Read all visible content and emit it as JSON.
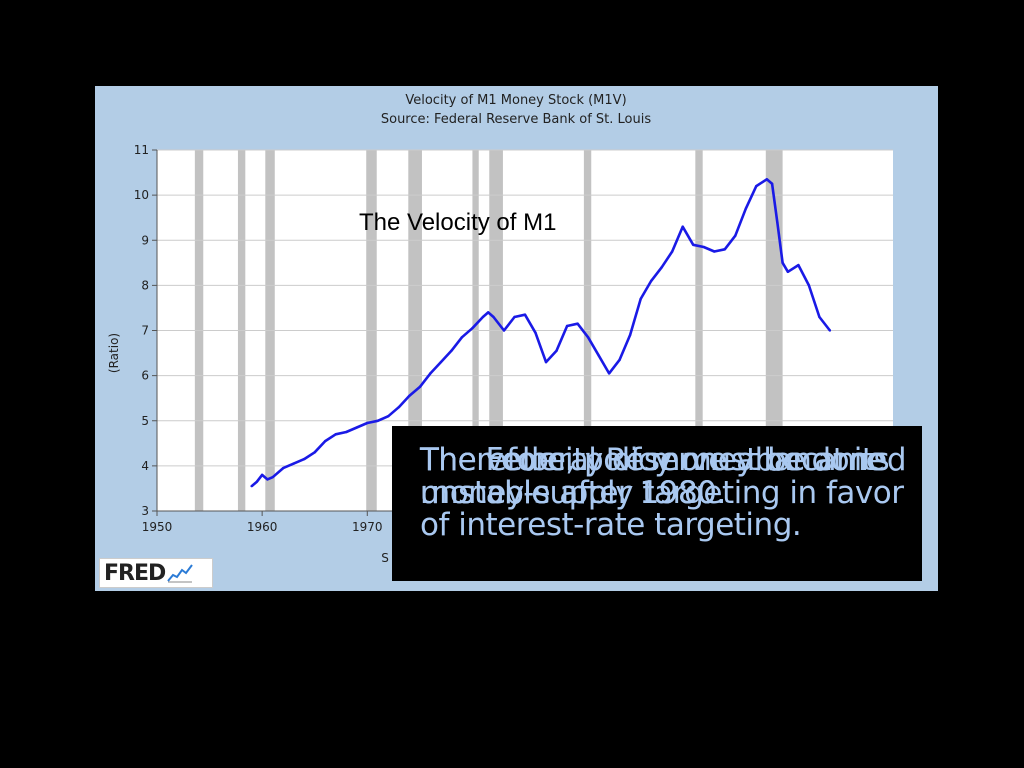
{
  "chart_data": {
    "type": "line",
    "title": "Velocity of M1 Money Stock (M1V)",
    "subtitle": "Source: Federal Reserve Bank of St. Louis",
    "ylabel": "(Ratio)",
    "xlim": [
      1950,
      2020
    ],
    "ylim": [
      3,
      11
    ],
    "x_ticks": [
      1950,
      1960,
      1970
    ],
    "x_tick_labels": [
      "1950",
      "1960",
      "1970"
    ],
    "y_ticks": [
      3,
      4,
      5,
      6,
      7,
      8,
      9,
      10,
      11
    ],
    "y_tick_labels": [
      "3",
      "4",
      "5",
      "6",
      "7",
      "8",
      "9",
      "10",
      "11"
    ],
    "grid": true,
    "series_color": "#1a1ae6",
    "recessions": [
      [
        1953.6,
        1954.4
      ],
      [
        1957.7,
        1958.4
      ],
      [
        1960.3,
        1961.2
      ],
      [
        1969.9,
        1970.9
      ],
      [
        1973.9,
        1975.2
      ],
      [
        1980.0,
        1980.6
      ],
      [
        1981.6,
        1982.9
      ],
      [
        1990.6,
        1991.3
      ],
      [
        2001.2,
        2001.9
      ],
      [
        2007.9,
        2009.5
      ]
    ],
    "series": [
      {
        "x": [
          1959.0,
          1959.5,
          1960.0,
          1960.5,
          1961.0,
          1962.0,
          1963.0,
          1964.0,
          1965.0,
          1966.0,
          1967.0,
          1968.0,
          1969.0,
          1970.0,
          1971.0,
          1972.0,
          1973.0,
          1974.0,
          1975.0,
          1976.0,
          1977.0,
          1978.0,
          1979.0,
          1980.0,
          1981.0,
          1981.5,
          1982.0,
          1983.0,
          1984.0,
          1985.0,
          1986.0,
          1987.0,
          1988.0,
          1989.0,
          1990.0,
          1991.0,
          1992.0,
          1993.0,
          1994.0,
          1995.0,
          1996.0,
          1997.0,
          1998.0,
          1999.0,
          2000.0,
          2001.0,
          2002.0,
          2003.0,
          2004.0,
          2005.0,
          2006.0,
          2007.0,
          2008.0,
          2008.5,
          2009.0,
          2009.5,
          2010.0,
          2011.0,
          2012.0,
          2013.0,
          2014.0
        ],
        "values": [
          3.55,
          3.65,
          3.8,
          3.7,
          3.75,
          3.95,
          4.05,
          4.15,
          4.3,
          4.55,
          4.7,
          4.75,
          4.85,
          4.95,
          5.0,
          5.1,
          5.3,
          5.55,
          5.75,
          6.05,
          6.3,
          6.55,
          6.85,
          7.05,
          7.3,
          7.4,
          7.3,
          7.0,
          7.3,
          7.35,
          6.95,
          6.3,
          6.55,
          7.1,
          7.15,
          6.85,
          6.45,
          6.05,
          6.35,
          6.9,
          7.7,
          8.1,
          8.4,
          8.75,
          9.3,
          8.9,
          8.85,
          8.75,
          8.8,
          9.1,
          9.7,
          10.2,
          10.35,
          10.25,
          9.4,
          8.5,
          8.3,
          8.45,
          8.0,
          7.3,
          7.0
        ]
      }
    ]
  },
  "inner_label": "The Velocity of M1",
  "x_axis_title_partial": "S",
  "overlay_text_1": "The Federal Reserve abandoned money-supply targeting in favor of interest-rate targeting.",
  "overlay_text_2": "The velocity of money became unstable after 1980.",
  "overlay_text_3": "Therefore, policy must be at its unstable after 1980.",
  "logo": {
    "word": "FRED",
    "icon": "fred-chart-icon"
  }
}
